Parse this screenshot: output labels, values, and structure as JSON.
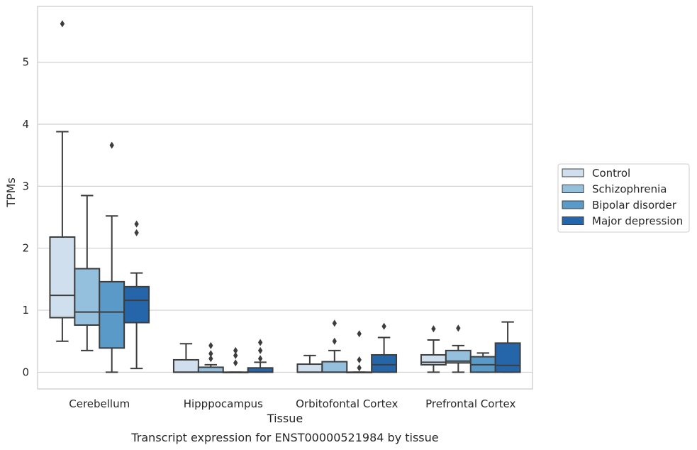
{
  "chart_data": {
    "type": "box",
    "title": "",
    "caption": "Transcript expression for ENST00000521984 by tissue",
    "xlabel": "Tissue",
    "ylabel": "TPMs",
    "ylim": [
      -0.27,
      5.9
    ],
    "yticks": [
      0,
      1,
      2,
      3,
      4,
      5
    ],
    "grid": "horizontal",
    "legend_position": "right",
    "categories": [
      "Cerebellum",
      "Hipppocampus",
      "Orbitofontal Cortex",
      "Prefrontal Cortex"
    ],
    "series": [
      {
        "name": "Control",
        "color": "#cfdfee",
        "boxes": [
          {
            "whislo": 0.5,
            "q1": 0.88,
            "med": 1.24,
            "q3": 2.18,
            "whishi": 3.88,
            "fliers": [
              5.62
            ]
          },
          {
            "whislo": 0.0,
            "q1": 0.0,
            "med": 0.0,
            "q3": 0.2,
            "whishi": 0.46,
            "fliers": []
          },
          {
            "whislo": 0.0,
            "q1": 0.0,
            "med": 0.0,
            "q3": 0.13,
            "whishi": 0.27,
            "fliers": []
          },
          {
            "whislo": 0.0,
            "q1": 0.12,
            "med": 0.16,
            "q3": 0.28,
            "whishi": 0.52,
            "fliers": [
              0.7
            ]
          }
        ]
      },
      {
        "name": "Schizophrenia",
        "color": "#94bfdd",
        "boxes": [
          {
            "whislo": 0.35,
            "q1": 0.76,
            "med": 0.97,
            "q3": 1.67,
            "whishi": 2.85,
            "fliers": []
          },
          {
            "whislo": 0.0,
            "q1": 0.0,
            "med": 0.0,
            "q3": 0.08,
            "whishi": 0.12,
            "fliers": [
              0.22,
              0.3,
              0.43
            ]
          },
          {
            "whislo": 0.0,
            "q1": 0.0,
            "med": 0.0,
            "q3": 0.17,
            "whishi": 0.35,
            "fliers": [
              0.5,
              0.79
            ]
          },
          {
            "whislo": 0.0,
            "q1": 0.15,
            "med": 0.18,
            "q3": 0.35,
            "whishi": 0.43,
            "fliers": [
              0.71
            ]
          }
        ]
      },
      {
        "name": "Bipolar disorder",
        "color": "#5a9ac8",
        "boxes": [
          {
            "whislo": 0.0,
            "q1": 0.39,
            "med": 0.97,
            "q3": 1.46,
            "whishi": 2.52,
            "fliers": [
              3.66
            ]
          },
          {
            "whislo": 0.0,
            "q1": 0.0,
            "med": 0.0,
            "q3": 0.0,
            "whishi": 0.0,
            "fliers": [
              0.15,
              0.27,
              0.35
            ]
          },
          {
            "whislo": 0.0,
            "q1": 0.0,
            "med": 0.0,
            "q3": 0.0,
            "whishi": 0.0,
            "fliers": [
              0.07,
              0.2,
              0.62
            ]
          },
          {
            "whislo": 0.0,
            "q1": 0.0,
            "med": 0.12,
            "q3": 0.25,
            "whishi": 0.31,
            "fliers": []
          }
        ]
      },
      {
        "name": "Major depression",
        "color": "#2466a9",
        "boxes": [
          {
            "whislo": 0.06,
            "q1": 0.8,
            "med": 1.16,
            "q3": 1.38,
            "whishi": 1.6,
            "fliers": [
              2.25,
              2.39
            ]
          },
          {
            "whislo": 0.0,
            "q1": 0.0,
            "med": 0.0,
            "q3": 0.07,
            "whishi": 0.16,
            "fliers": [
              0.22,
              0.35,
              0.48
            ]
          },
          {
            "whislo": 0.0,
            "q1": 0.0,
            "med": 0.12,
            "q3": 0.28,
            "whishi": 0.56,
            "fliers": [
              0.74
            ]
          },
          {
            "whislo": 0.0,
            "q1": 0.0,
            "med": 0.11,
            "q3": 0.47,
            "whishi": 0.81,
            "fliers": []
          }
        ]
      }
    ]
  }
}
